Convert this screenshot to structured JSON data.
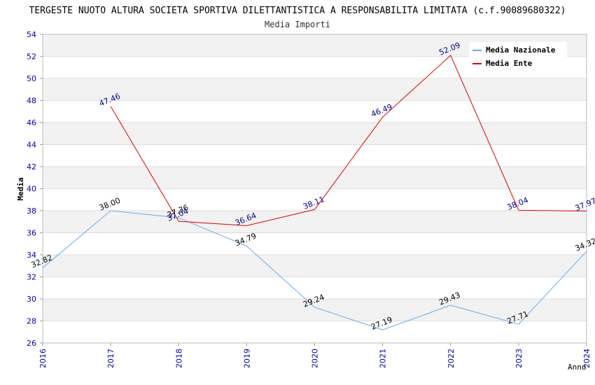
{
  "chart_data": {
    "type": "line",
    "title": "TERGESTE NUOTO ALTURA SOCIETA SPORTIVA DILETTANTISTICA A RESPONSABILITA LIMITATA (c.f.90089680322)",
    "subtitle": "Media Importi",
    "xlabel": "Anno",
    "ylabel": "Media",
    "x": [
      "2016",
      "2017",
      "2018",
      "2019",
      "2020",
      "2021",
      "2022",
      "2023",
      "2024"
    ],
    "ylim": [
      26,
      54
    ],
    "yticks": [
      "26",
      "28",
      "30",
      "32",
      "34",
      "36",
      "38",
      "40",
      "42",
      "44",
      "46",
      "48",
      "50",
      "52",
      "54"
    ],
    "grid": true,
    "legend_position": "top-right",
    "series": [
      {
        "name": "Media Nazionale",
        "color": "#66aaee",
        "label_color": "#000000",
        "values": [
          32.82,
          38.0,
          37.36,
          34.79,
          29.24,
          27.19,
          29.43,
          27.71,
          34.32
        ],
        "labels": [
          "32.82",
          "38.00",
          "37.36",
          "34.79",
          "29.24",
          "27.19",
          "29.43",
          "27.71",
          "34.32"
        ]
      },
      {
        "name": "Media Ente",
        "color": "#dd0000",
        "label_color": "#000088",
        "values": [
          null,
          47.46,
          37.04,
          36.64,
          38.11,
          46.49,
          52.09,
          38.04,
          37.97
        ],
        "labels": [
          null,
          "47.46",
          "37.04",
          "36.64",
          "38.11",
          "46.49",
          "52.09",
          "38.04",
          "37.97"
        ]
      }
    ],
    "colors": {
      "tick_text": "#0000aa",
      "band": "#f2f2f2",
      "grid": "#dddddd",
      "axis": "#999999"
    }
  }
}
